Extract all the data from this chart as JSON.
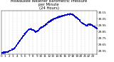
{
  "title": "Milwaukee Weather Barometric Pressure\nper Minute\n(24 Hours)",
  "dot_color": "#0000cc",
  "bg_color": "#ffffff",
  "grid_color": "#aaaaaa",
  "ylim": [
    29.5,
    30.18
  ],
  "xlim": [
    0,
    1440
  ],
  "ytick_values": [
    29.55,
    29.65,
    29.75,
    29.85,
    29.95,
    30.05,
    30.15
  ],
  "ytick_labels": [
    "29.55",
    "29.65",
    "29.75",
    "29.85",
    "29.95",
    "30.05",
    "30.15"
  ],
  "xtick_positions": [
    0,
    60,
    120,
    180,
    240,
    300,
    360,
    420,
    480,
    540,
    600,
    660,
    720,
    780,
    840,
    900,
    960,
    1020,
    1080,
    1140,
    1200,
    1260,
    1320,
    1380,
    1440
  ],
  "xtick_labels": [
    "0",
    "1",
    "2",
    "3",
    "4",
    "5",
    "6",
    "7",
    "8",
    "9",
    "10",
    "11",
    "12",
    "13",
    "14",
    "15",
    "16",
    "17",
    "18",
    "19",
    "20",
    "21",
    "22",
    "23",
    ""
  ],
  "dot_size": 0.4,
  "title_fontsize": 3.8,
  "tick_fontsize": 3.0,
  "grid_linewidth": 0.3,
  "spine_linewidth": 0.3,
  "trend_points": [
    [
      0,
      29.52
    ],
    [
      100,
      29.54
    ],
    [
      200,
      29.6
    ],
    [
      280,
      29.72
    ],
    [
      350,
      29.82
    ],
    [
      420,
      29.9
    ],
    [
      480,
      29.88
    ],
    [
      520,
      29.85
    ],
    [
      560,
      29.88
    ],
    [
      600,
      29.92
    ],
    [
      650,
      29.95
    ],
    [
      700,
      30.0
    ],
    [
      780,
      30.05
    ],
    [
      850,
      30.08
    ],
    [
      920,
      30.1
    ],
    [
      980,
      30.12
    ],
    [
      1040,
      30.13
    ],
    [
      1080,
      30.12
    ],
    [
      1120,
      30.08
    ],
    [
      1160,
      30.05
    ],
    [
      1200,
      30.0
    ],
    [
      1240,
      29.97
    ],
    [
      1280,
      29.95
    ],
    [
      1320,
      29.97
    ],
    [
      1360,
      29.96
    ],
    [
      1400,
      29.93
    ],
    [
      1440,
      29.9
    ]
  ],
  "noise_std": 0.006,
  "noise_seed": 7
}
